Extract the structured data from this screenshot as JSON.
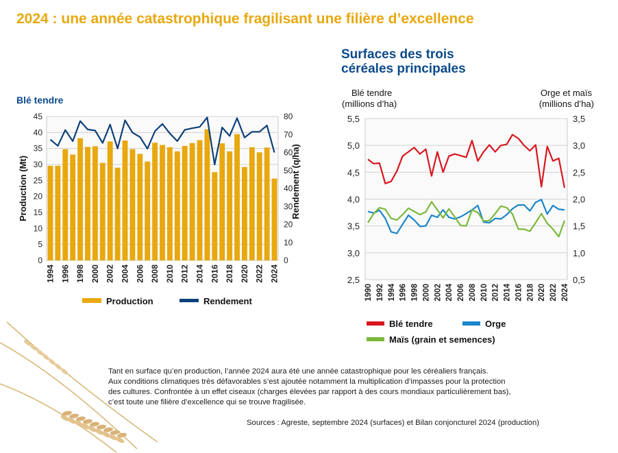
{
  "header": {
    "title": "2024 : une année catastrophique fragilisant une filière d’excellence"
  },
  "colors": {
    "title": "#e8a80e",
    "navy": "#0b4a8b",
    "production": "#e8a80e",
    "rendement": "#0d3f7a",
    "ble": "#d9161e",
    "orge": "#1a86cc",
    "mais": "#7ab83a"
  },
  "left_chart_title": "Blé tendre",
  "right_chart": {
    "title_line1": "Surfaces des trois",
    "title_line2": "céréales principales",
    "left_axis_label_line1": "Blé tendre",
    "left_axis_label_line2": "(millions d’ha)",
    "right_axis_label_line1": "Orge et maïs",
    "right_axis_label_line2": "(millions d’ha)"
  },
  "text": {
    "line1": "Tant en surface qu’en production, l’année 2024 aura été une année catastrophique pour les céréaliers français.",
    "line2": "Aux conditions climatiques très défavorables s’est ajoutée notamment la multiplication d’impasses pour la protection",
    "line3": "des cultures. Confrontée à un effet ciseaux (charges élevées par rapport à des cours mondiaux particulièrement bas),",
    "line4": "c’est toute une filière d’excellence qui se trouve fragilisée.",
    "sources": "Sources : Agreste, septembre 2024 (surfaces) et Bilan conjoncturel 2024 (production)"
  },
  "chart_data": [
    {
      "type": "bar",
      "title": "Blé tendre",
      "x": [
        1994,
        1995,
        1996,
        1997,
        1998,
        1999,
        2000,
        2001,
        2002,
        2003,
        2004,
        2005,
        2006,
        2007,
        2008,
        2009,
        2010,
        2011,
        2012,
        2013,
        2014,
        2015,
        2016,
        2017,
        2018,
        2019,
        2020,
        2021,
        2022,
        2023,
        2024
      ],
      "x_tick_labels": [
        "1994",
        "1996",
        "1998",
        "2000",
        "2002",
        "2004",
        "2006",
        "2008",
        "2010",
        "2012",
        "2014",
        "2016",
        "2018",
        "2020",
        "2022",
        "2024"
      ],
      "series": [
        {
          "name": "Production",
          "axis": "left",
          "kind": "bar",
          "values": [
            29.6,
            29.6,
            34.8,
            33.1,
            38.2,
            35.5,
            35.7,
            30.5,
            37.2,
            29.0,
            37.5,
            34.8,
            33.3,
            30.9,
            36.8,
            36.1,
            35.4,
            34.1,
            35.8,
            36.7,
            37.6,
            41.0,
            27.6,
            36.6,
            34.1,
            39.5,
            29.2,
            35.4,
            33.8,
            35.3,
            25.6
          ]
        },
        {
          "name": "Rendement",
          "axis": "right",
          "kind": "line",
          "values": [
            67.2,
            63.7,
            72.5,
            66.3,
            77.5,
            72.8,
            72.2,
            65.3,
            75.5,
            62.2,
            77.9,
            71.0,
            68.6,
            62.1,
            71.8,
            75.9,
            70.6,
            66.3,
            72.6,
            73.5,
            74.2,
            79.5,
            53.3,
            73.9,
            69.2,
            79.1,
            68.3,
            71.5,
            71.5,
            75.0,
            60.0
          ]
        }
      ],
      "ylabel_left": "Production (Mt)",
      "ylabel_right": "Rendement (q/ha)",
      "ylim_left": [
        0,
        45
      ],
      "yticks_left": [
        0,
        5,
        10,
        15,
        20,
        25,
        30,
        35,
        40,
        45
      ],
      "ylim_right": [
        0,
        80
      ],
      "yticks_right": [
        0,
        10,
        20,
        30,
        40,
        50,
        60,
        70,
        80
      ],
      "grid": true,
      "legend": [
        "Production",
        "Rendement"
      ],
      "legend_placement": "bottom"
    },
    {
      "type": "line",
      "title": "Surfaces des trois céréales principales",
      "x": [
        1990,
        1991,
        1992,
        1993,
        1994,
        1995,
        1996,
        1997,
        1998,
        1999,
        2000,
        2001,
        2002,
        2003,
        2004,
        2005,
        2006,
        2007,
        2008,
        2009,
        2010,
        2011,
        2012,
        2013,
        2014,
        2015,
        2016,
        2017,
        2018,
        2019,
        2020,
        2021,
        2022,
        2023,
        2024
      ],
      "x_tick_labels": [
        "1990",
        "1992",
        "1994",
        "1996",
        "1998",
        "2000",
        "2002",
        "2004",
        "2006",
        "2008",
        "2010",
        "2012",
        "2014",
        "2016",
        "2018",
        "2020",
        "2022",
        "2024"
      ],
      "series": [
        {
          "name": "Blé tendre",
          "axis": "left",
          "values": [
            4.74,
            4.66,
            4.67,
            4.29,
            4.33,
            4.52,
            4.8,
            4.88,
            4.96,
            4.84,
            4.93,
            4.43,
            4.88,
            4.5,
            4.8,
            4.84,
            4.81,
            4.78,
            5.09,
            4.71,
            4.88,
            5.01,
            4.88,
            5.0,
            5.02,
            5.2,
            5.13,
            5.0,
            4.9,
            5.01,
            4.23,
            4.98,
            4.71,
            4.76,
            4.21
          ]
        },
        {
          "name": "Orge",
          "axis": "right",
          "values": [
            1.77,
            1.74,
            1.79,
            1.64,
            1.39,
            1.36,
            1.53,
            1.7,
            1.61,
            1.49,
            1.5,
            1.7,
            1.66,
            1.8,
            1.66,
            1.63,
            1.67,
            1.73,
            1.8,
            1.88,
            1.57,
            1.56,
            1.64,
            1.63,
            1.71,
            1.82,
            1.89,
            1.89,
            1.78,
            1.94,
            1.99,
            1.72,
            1.88,
            1.81,
            1.8
          ]
        },
        {
          "name": "Maïs (grain et semences)",
          "axis": "right",
          "values": [
            1.56,
            1.73,
            1.84,
            1.81,
            1.64,
            1.61,
            1.71,
            1.83,
            1.77,
            1.71,
            1.76,
            1.95,
            1.8,
            1.65,
            1.82,
            1.67,
            1.51,
            1.5,
            1.8,
            1.75,
            1.59,
            1.6,
            1.73,
            1.87,
            1.84,
            1.72,
            1.44,
            1.44,
            1.4,
            1.56,
            1.73,
            1.55,
            1.44,
            1.3,
            1.6
          ]
        }
      ],
      "ylabel_left": "Blé tendre (millions d’ha)",
      "ylabel_right": "Orge et maïs (millions d’ha)",
      "ylim_left": [
        2.5,
        5.5
      ],
      "yticks_left": [
        "2,5",
        "3,0",
        "3,5",
        "4,0",
        "4,5",
        "5,0",
        "5,5"
      ],
      "ylim_right": [
        0.5,
        3.5
      ],
      "yticks_right": [
        "0,5",
        "1,0",
        "1,5",
        "2,0",
        "2,5",
        "3,0",
        "3,5"
      ],
      "grid": true,
      "legend": [
        "Blé tendre",
        "Orge",
        "Maïs (grain et semences)"
      ],
      "legend_placement": "bottom"
    }
  ]
}
